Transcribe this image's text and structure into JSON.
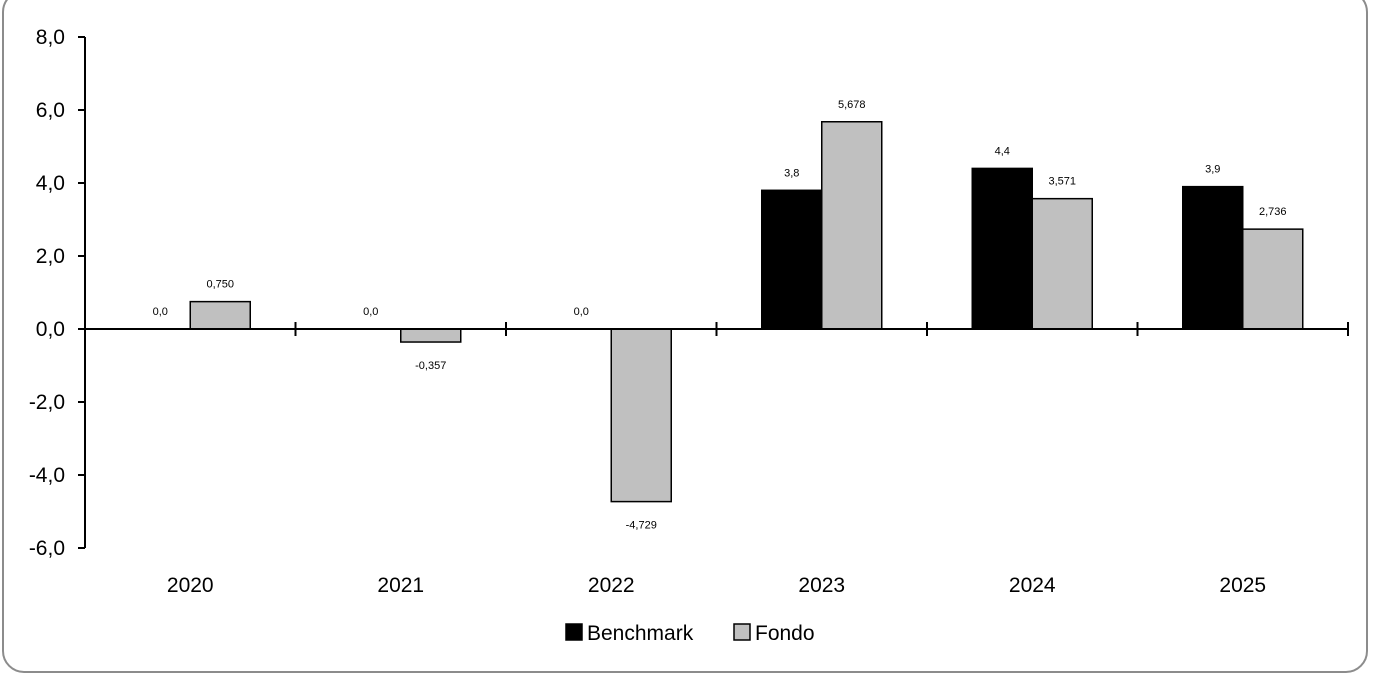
{
  "chart_data": {
    "type": "bar",
    "title": "",
    "xlabel": "",
    "ylabel": "",
    "categories": [
      "2020",
      "2021",
      "2022",
      "2023",
      "2024",
      "2025"
    ],
    "series": [
      {
        "name": "Benchmark",
        "color": "#000000",
        "values": [
          0.0,
          0.0,
          0.0,
          3.8,
          4.4,
          3.9
        ],
        "labels": [
          "0,0",
          "0,0",
          "0,0",
          "3,8",
          "4,4",
          "3,9"
        ]
      },
      {
        "name": "Fondo",
        "color": "#c0c0c0",
        "values": [
          0.75,
          -0.357,
          -4.729,
          5.678,
          3.571,
          2.736
        ],
        "labels": [
          "0,750",
          "-0,357",
          "-4,729",
          "5,678",
          "3,571",
          "2,736"
        ]
      }
    ],
    "ylim": [
      -6,
      8
    ],
    "yticks": [
      8,
      6,
      4,
      2,
      0,
      -2,
      -4,
      -6
    ],
    "ytick_labels": [
      "8,0",
      "6,0",
      "4,0",
      "2,0",
      "0,0",
      "-2,0",
      "-4,0",
      "-6,0"
    ],
    "grid": false,
    "legend_position": "bottom"
  }
}
